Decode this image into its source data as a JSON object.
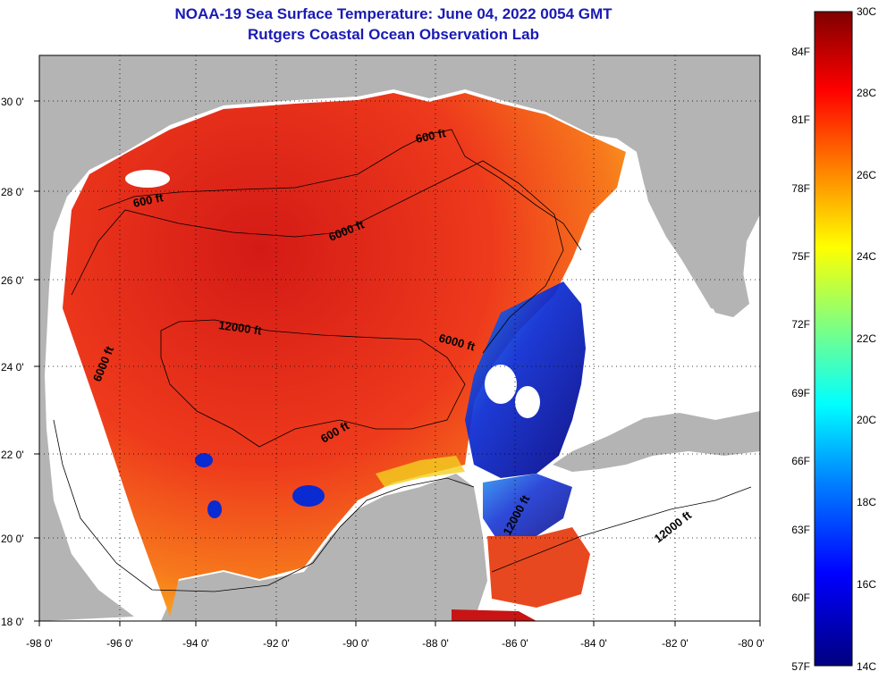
{
  "title": "NOAA-19 Sea Surface Temperature:  June 04, 2022 0054 GMT",
  "subtitle": "Rutgers Coastal Ocean Observation Lab",
  "lat_labels": [
    "30 0'",
    "28 0'",
    "26 0'",
    "24 0'",
    "22 0'",
    "20 0'",
    "18 0'"
  ],
  "lon_labels": [
    "-98 0'",
    "-96 0'",
    "-94 0'",
    "-92 0'",
    "-90 0'",
    "-88 0'",
    "-86 0'",
    "-84 0'",
    "-82 0'",
    "-80 0'"
  ],
  "contours": [
    "600 ft",
    "600 ft",
    "6000 ft",
    "12000 ft",
    "6000 ft",
    "6000 ft",
    "600 ft",
    "12000 ft",
    "12000 ft"
  ],
  "colorbar": {
    "celsius": [
      "30C",
      "28C",
      "26C",
      "24C",
      "22C",
      "20C",
      "18C",
      "16C",
      "14C"
    ],
    "fahrenheit": [
      "84F",
      "81F",
      "78F",
      "75F",
      "72F",
      "69F",
      "66F",
      "63F",
      "60F",
      "57F"
    ],
    "range_c": [
      14,
      30
    ],
    "colors": [
      "#00007f",
      "#0000ff",
      "#0080ff",
      "#00ffff",
      "#80ff80",
      "#ffff00",
      "#ff8000",
      "#ff0000",
      "#7f0000"
    ]
  },
  "map_colors": {
    "land": "#b4b4b4",
    "nodata": "#ffffff",
    "warm": "#e8281e",
    "hot": "#c81414",
    "cool": "#0a2ad2"
  }
}
